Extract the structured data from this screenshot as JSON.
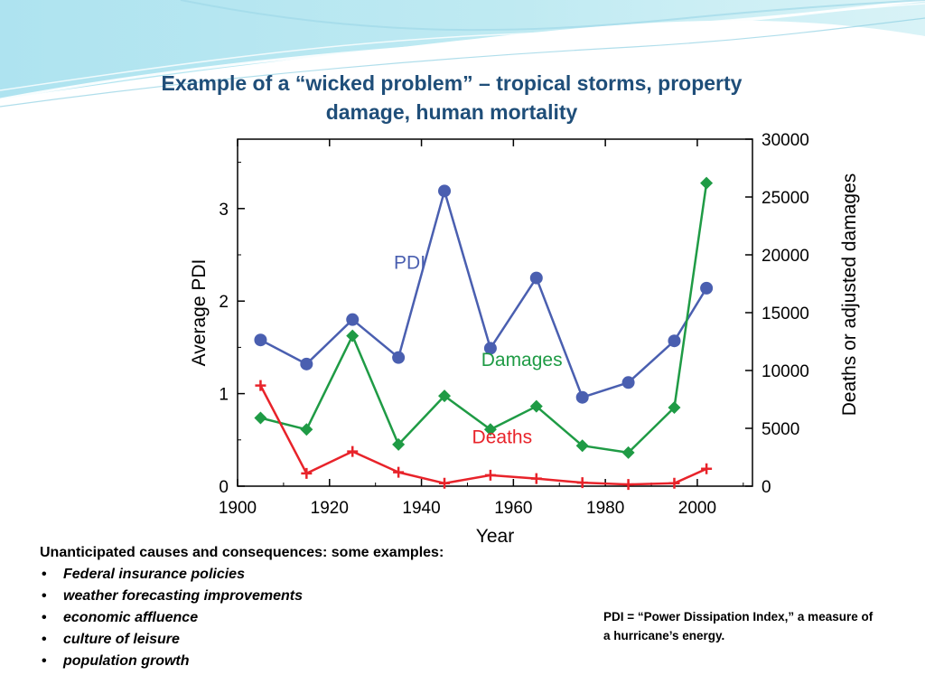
{
  "slide": {
    "title_line1": "Example of a “wicked problem” – tropical storms, property",
    "title_line2": "damage, human mortality"
  },
  "bullets": {
    "heading": "Unanticipated causes and consequences: some examples:",
    "items": [
      "Federal insurance policies",
      "weather forecasting improvements",
      "economic affluence",
      "culture of leisure",
      "population growth"
    ]
  },
  "footnote": {
    "line1": "PDI = “Power Dissipation Index,” a measure of",
    "line2": "a hurricane’s energy."
  },
  "colors": {
    "title": "#1f4e79",
    "pdi": "#4a5fb0",
    "damages": "#1f9b45",
    "deaths": "#e8232a"
  },
  "chart_data": {
    "type": "line",
    "xlabel": "Year",
    "ylabel_left": "Average PDI",
    "ylabel_right": "Deaths or adjusted damages",
    "xlim": [
      1900,
      2012
    ],
    "ylim_left": [
      0,
      3.75
    ],
    "ylim_right": [
      0,
      30000
    ],
    "x_ticks": [
      1900,
      1920,
      1940,
      1960,
      1980,
      2000
    ],
    "y_ticks_left": [
      0,
      1,
      2,
      3
    ],
    "y_ticks_right": [
      0,
      5000,
      10000,
      15000,
      20000,
      25000,
      30000
    ],
    "grid": false,
    "series": [
      {
        "name": "PDI",
        "axis": "left",
        "marker": "circle",
        "color": "#4a5fb0",
        "x": [
          1905,
          1915,
          1925,
          1935,
          1945,
          1955,
          1965,
          1975,
          1985,
          1995,
          2002
        ],
        "values": [
          1.58,
          1.32,
          1.8,
          1.39,
          3.19,
          1.49,
          2.25,
          0.96,
          1.12,
          1.57,
          2.14
        ]
      },
      {
        "name": "Damages",
        "axis": "right",
        "marker": "diamond",
        "color": "#1f9b45",
        "x": [
          1905,
          1915,
          1925,
          1935,
          1945,
          1955,
          1965,
          1975,
          1985,
          1995,
          2002
        ],
        "values": [
          5900,
          4900,
          13000,
          3600,
          7800,
          4900,
          6900,
          3500,
          2900,
          6800,
          26200
        ]
      },
      {
        "name": "Deaths",
        "axis": "right",
        "marker": "plus",
        "color": "#e8232a",
        "x": [
          1905,
          1915,
          1925,
          1935,
          1945,
          1955,
          1965,
          1975,
          1985,
          1995,
          2002
        ],
        "values": [
          8700,
          1100,
          3000,
          1200,
          250,
          950,
          650,
          300,
          150,
          250,
          1500
        ]
      }
    ]
  }
}
